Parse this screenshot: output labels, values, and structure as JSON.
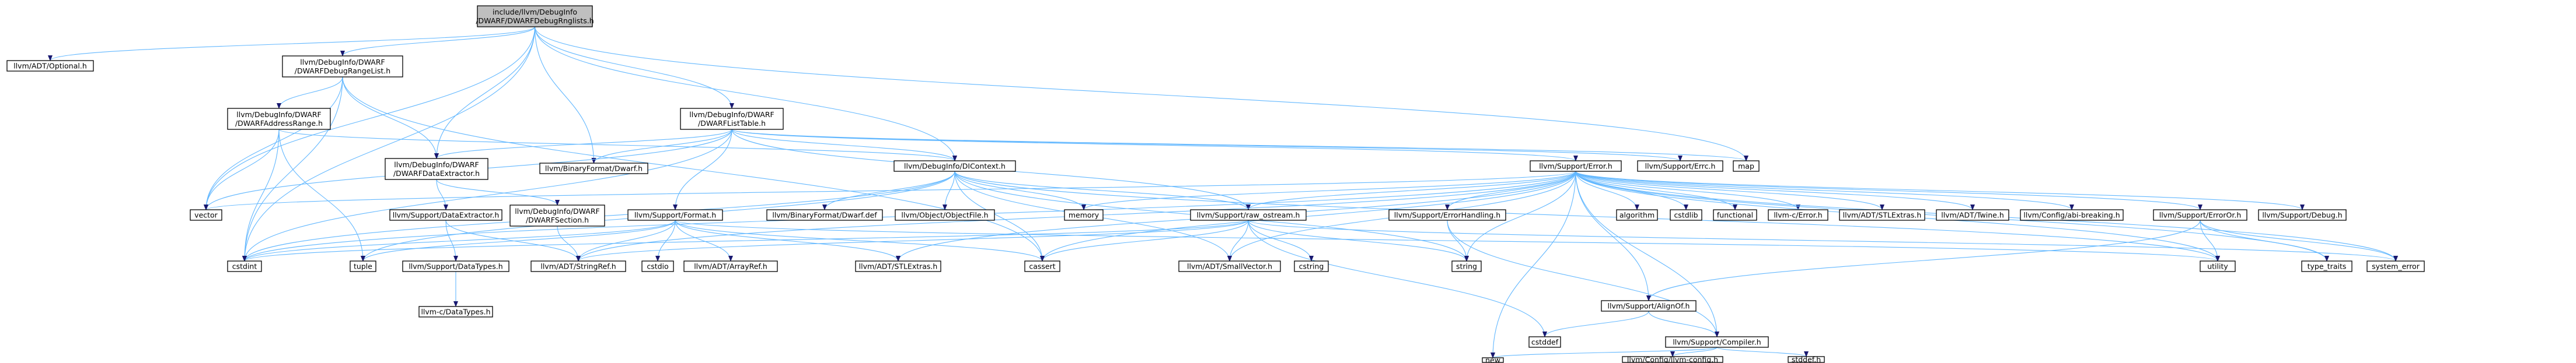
{
  "diagram": {
    "colors": {
      "edge": "#63b8ff",
      "edge_secondary": "#191970",
      "root_fill": "#bfbfbf"
    },
    "nodes": [
      {
        "id": "root",
        "lines": [
          "include/llvm/DebugInfo",
          "/DWARF/DWARFDebugRnglists.h"
        ],
        "root": true
      },
      {
        "id": "optional",
        "lines": [
          "llvm/ADT/Optional.h"
        ]
      },
      {
        "id": "rangelist",
        "lines": [
          "llvm/DebugInfo/DWARF",
          "/DWARFDebugRangeList.h"
        ]
      },
      {
        "id": "addrrange",
        "lines": [
          "llvm/DebugInfo/DWARF",
          "/DWARFAddressRange.h"
        ]
      },
      {
        "id": "listtable",
        "lines": [
          "llvm/DebugInfo/DWARF",
          "/DWARFListTable.h"
        ]
      },
      {
        "id": "dataextractor",
        "lines": [
          "llvm/DebugInfo/DWARF",
          "/DWARFDataExtractor.h"
        ]
      },
      {
        "id": "dwarfh",
        "lines": [
          "llvm/BinaryFormat/Dwarf.h"
        ]
      },
      {
        "id": "dicontext",
        "lines": [
          "llvm/DebugInfo/DIContext.h"
        ]
      },
      {
        "id": "error",
        "lines": [
          "llvm/Support/Error.h"
        ]
      },
      {
        "id": "errc",
        "lines": [
          "llvm/Support/Errc.h"
        ]
      },
      {
        "id": "map",
        "lines": [
          "map"
        ]
      },
      {
        "id": "vector",
        "lines": [
          "vector"
        ]
      },
      {
        "id": "sde",
        "lines": [
          "llvm/Support/DataExtractor.h"
        ]
      },
      {
        "id": "dwarfsection",
        "lines": [
          "llvm/DebugInfo/DWARF",
          "/DWARFSection.h"
        ]
      },
      {
        "id": "format",
        "lines": [
          "llvm/Support/Format.h"
        ]
      },
      {
        "id": "dwarfdef",
        "lines": [
          "llvm/BinaryFormat/Dwarf.def"
        ]
      },
      {
        "id": "objectfile",
        "lines": [
          "llvm/Object/ObjectFile.h"
        ]
      },
      {
        "id": "memory",
        "lines": [
          "memory"
        ]
      },
      {
        "id": "rawostream",
        "lines": [
          "llvm/Support/raw_ostream.h"
        ]
      },
      {
        "id": "algorithm",
        "lines": [
          "algorithm"
        ]
      },
      {
        "id": "cstdlib",
        "lines": [
          "cstdlib"
        ]
      },
      {
        "id": "functional",
        "lines": [
          "functional"
        ]
      },
      {
        "id": "cerror",
        "lines": [
          "llvm-c/Error.h"
        ]
      },
      {
        "id": "stlextras2",
        "lines": [
          "llvm/ADT/STLExtras.h"
        ]
      },
      {
        "id": "twine",
        "lines": [
          "llvm/ADT/Twine.h"
        ]
      },
      {
        "id": "abibreaking",
        "lines": [
          "llvm/Config/abi-breaking.h"
        ]
      },
      {
        "id": "erroror",
        "lines": [
          "llvm/Support/ErrorOr.h"
        ]
      },
      {
        "id": "debugh",
        "lines": [
          "llvm/Support/Debug.h"
        ]
      },
      {
        "id": "errorhandling",
        "lines": [
          "llvm/Support/ErrorHandling.h"
        ]
      },
      {
        "id": "cstdint",
        "lines": [
          "cstdint"
        ]
      },
      {
        "id": "tuple",
        "lines": [
          "tuple"
        ]
      },
      {
        "id": "datatypes",
        "lines": [
          "llvm/Support/DataTypes.h"
        ]
      },
      {
        "id": "stringref",
        "lines": [
          "llvm/ADT/StringRef.h"
        ]
      },
      {
        "id": "cstdio",
        "lines": [
          "cstdio"
        ]
      },
      {
        "id": "arrayref",
        "lines": [
          "llvm/ADT/ArrayRef.h"
        ]
      },
      {
        "id": "stlextras",
        "lines": [
          "llvm/ADT/STLExtras.h"
        ]
      },
      {
        "id": "cassert",
        "lines": [
          "cassert"
        ]
      },
      {
        "id": "smallvector",
        "lines": [
          "llvm/ADT/SmallVector.h"
        ]
      },
      {
        "id": "cstring",
        "lines": [
          "cstring"
        ]
      },
      {
        "id": "string",
        "lines": [
          "string"
        ]
      },
      {
        "id": "utility",
        "lines": [
          "utility"
        ]
      },
      {
        "id": "typetraits",
        "lines": [
          "type_traits"
        ]
      },
      {
        "id": "systemerror",
        "lines": [
          "system_error"
        ]
      },
      {
        "id": "cdatatypes",
        "lines": [
          "llvm-c/DataTypes.h"
        ]
      },
      {
        "id": "alignof",
        "lines": [
          "llvm/Support/AlignOf.h"
        ]
      },
      {
        "id": "cstddef",
        "lines": [
          "cstddef"
        ]
      },
      {
        "id": "compiler",
        "lines": [
          "llvm/Support/Compiler.h"
        ]
      },
      {
        "id": "new",
        "lines": [
          "new"
        ]
      },
      {
        "id": "llvmconfig",
        "lines": [
          "llvm/Config/llvm-config.h"
        ]
      },
      {
        "id": "stddef",
        "lines": [
          "stddef.h"
        ]
      }
    ]
  }
}
